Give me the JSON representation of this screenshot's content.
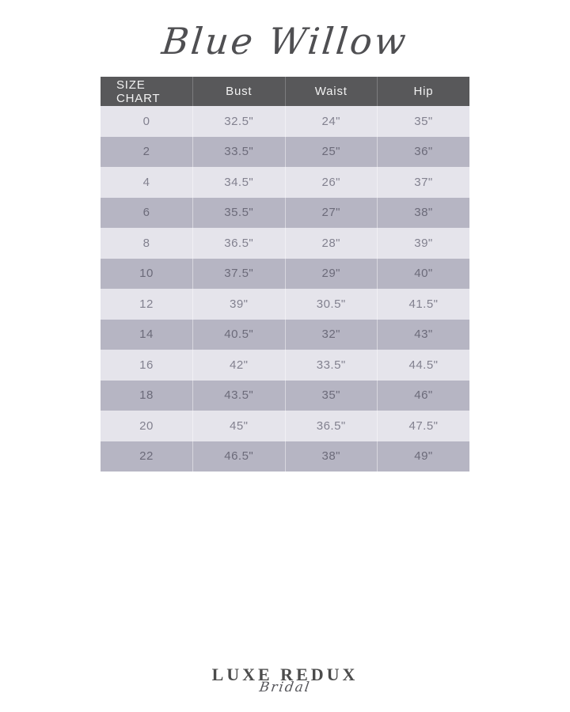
{
  "header": {
    "brand_title": "Blue Willow"
  },
  "size_chart": {
    "columns": [
      "SIZE CHART",
      "Bust",
      "Waist",
      "Hip"
    ],
    "rows": [
      {
        "size": "0",
        "bust": "32.5\"",
        "waist": "24\"",
        "hip": "35\""
      },
      {
        "size": "2",
        "bust": "33.5\"",
        "waist": "25\"",
        "hip": "36\""
      },
      {
        "size": "4",
        "bust": "34.5\"",
        "waist": "26\"",
        "hip": "37\""
      },
      {
        "size": "6",
        "bust": "35.5\"",
        "waist": "27\"",
        "hip": "38\""
      },
      {
        "size": "8",
        "bust": "36.5\"",
        "waist": "28\"",
        "hip": "39\""
      },
      {
        "size": "10",
        "bust": "37.5\"",
        "waist": "29\"",
        "hip": "40\""
      },
      {
        "size": "12",
        "bust": "39\"",
        "waist": "30.5\"",
        "hip": "41.5\""
      },
      {
        "size": "14",
        "bust": "40.5\"",
        "waist": "32\"",
        "hip": "43\""
      },
      {
        "size": "16",
        "bust": "42\"",
        "waist": "33.5\"",
        "hip": "44.5\""
      },
      {
        "size": "18",
        "bust": "43.5\"",
        "waist": "35\"",
        "hip": "46\""
      },
      {
        "size": "20",
        "bust": "45\"",
        "waist": "36.5\"",
        "hip": "47.5\""
      },
      {
        "size": "22",
        "bust": "46.5\"",
        "waist": "38\"",
        "hip": "49\""
      }
    ]
  },
  "footer": {
    "logo_primary": "LUXE REDUX",
    "logo_secondary": "Bridal"
  },
  "colors": {
    "header_bg": "#58585a",
    "header_text": "#f2f2f2",
    "row_light": "#e5e4eb",
    "row_dark": "#b6b5c3",
    "row_text_light": "#82818f",
    "row_text_dark": "#6c6b7a",
    "brand_ink": "#4f4f52"
  }
}
